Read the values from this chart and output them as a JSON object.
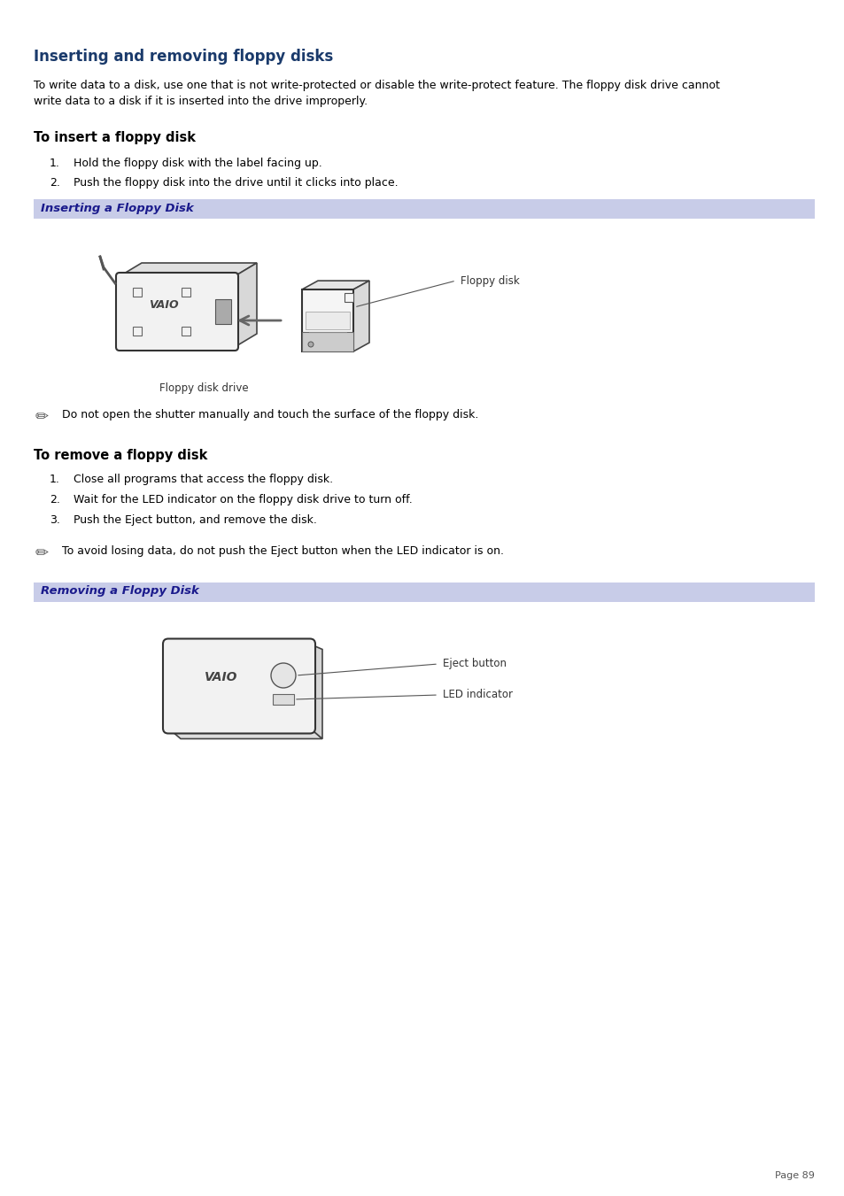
{
  "title": "Inserting and removing floppy disks",
  "title_color": "#1a3a6b",
  "body_color": "#000000",
  "bg_color": "#FFFFFF",
  "header_bg": "#c8cce8",
  "header_text_color": "#1a1a8c",
  "intro_line1": "To write data to a disk, use one that is not write-protected or disable the write-protect feature. The floppy disk drive cannot",
  "intro_line2": "write data to a disk if it is inserted into the drive improperly.",
  "section1_title": "To insert a floppy disk",
  "section1_steps": [
    "Hold the floppy disk with the label facing up.",
    "Push the floppy disk into the drive until it clicks into place."
  ],
  "box1_title": "Inserting a Floppy Disk",
  "note1": "Do not open the shutter manually and touch the surface of the floppy disk.",
  "section2_title": "To remove a floppy disk",
  "section2_steps": [
    "Close all programs that access the floppy disk.",
    "Wait for the LED indicator on the floppy disk drive to turn off.",
    "Push the Eject button, and remove the disk."
  ],
  "note2": "To avoid losing data, do not push the Eject button when the LED indicator is on.",
  "box2_title": "Removing a Floppy Disk",
  "page_number": "Page 89"
}
